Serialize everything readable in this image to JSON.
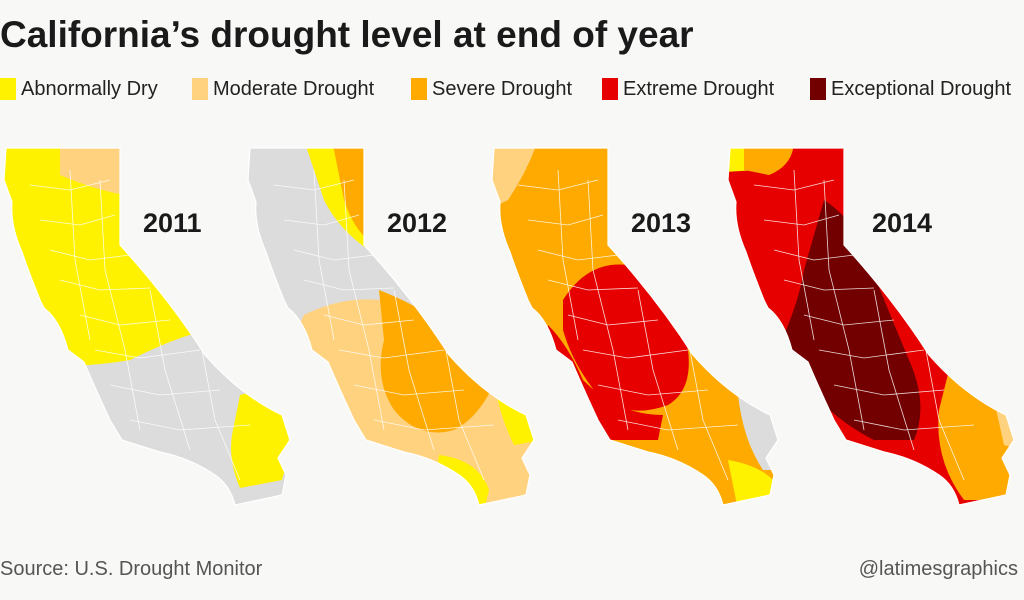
{
  "title": "California’s drought level at end of year",
  "legend": [
    {
      "label": "Abnormally Dry",
      "color": "#fff200"
    },
    {
      "label": "Moderate Drought",
      "color": "#ffd27f"
    },
    {
      "label": "Severe Drought",
      "color": "#ffaa00"
    },
    {
      "label": "Extreme Drought",
      "color": "#e60000"
    },
    {
      "label": "Exceptional Drought",
      "color": "#730000"
    }
  ],
  "no_drought_color": "#dcdcdc",
  "maps": [
    {
      "year": "2011"
    },
    {
      "year": "2012"
    },
    {
      "year": "2013"
    },
    {
      "year": "2014"
    }
  ],
  "source": "Source: U.S. Drought Monitor",
  "credit": "@latimesgraphics"
}
